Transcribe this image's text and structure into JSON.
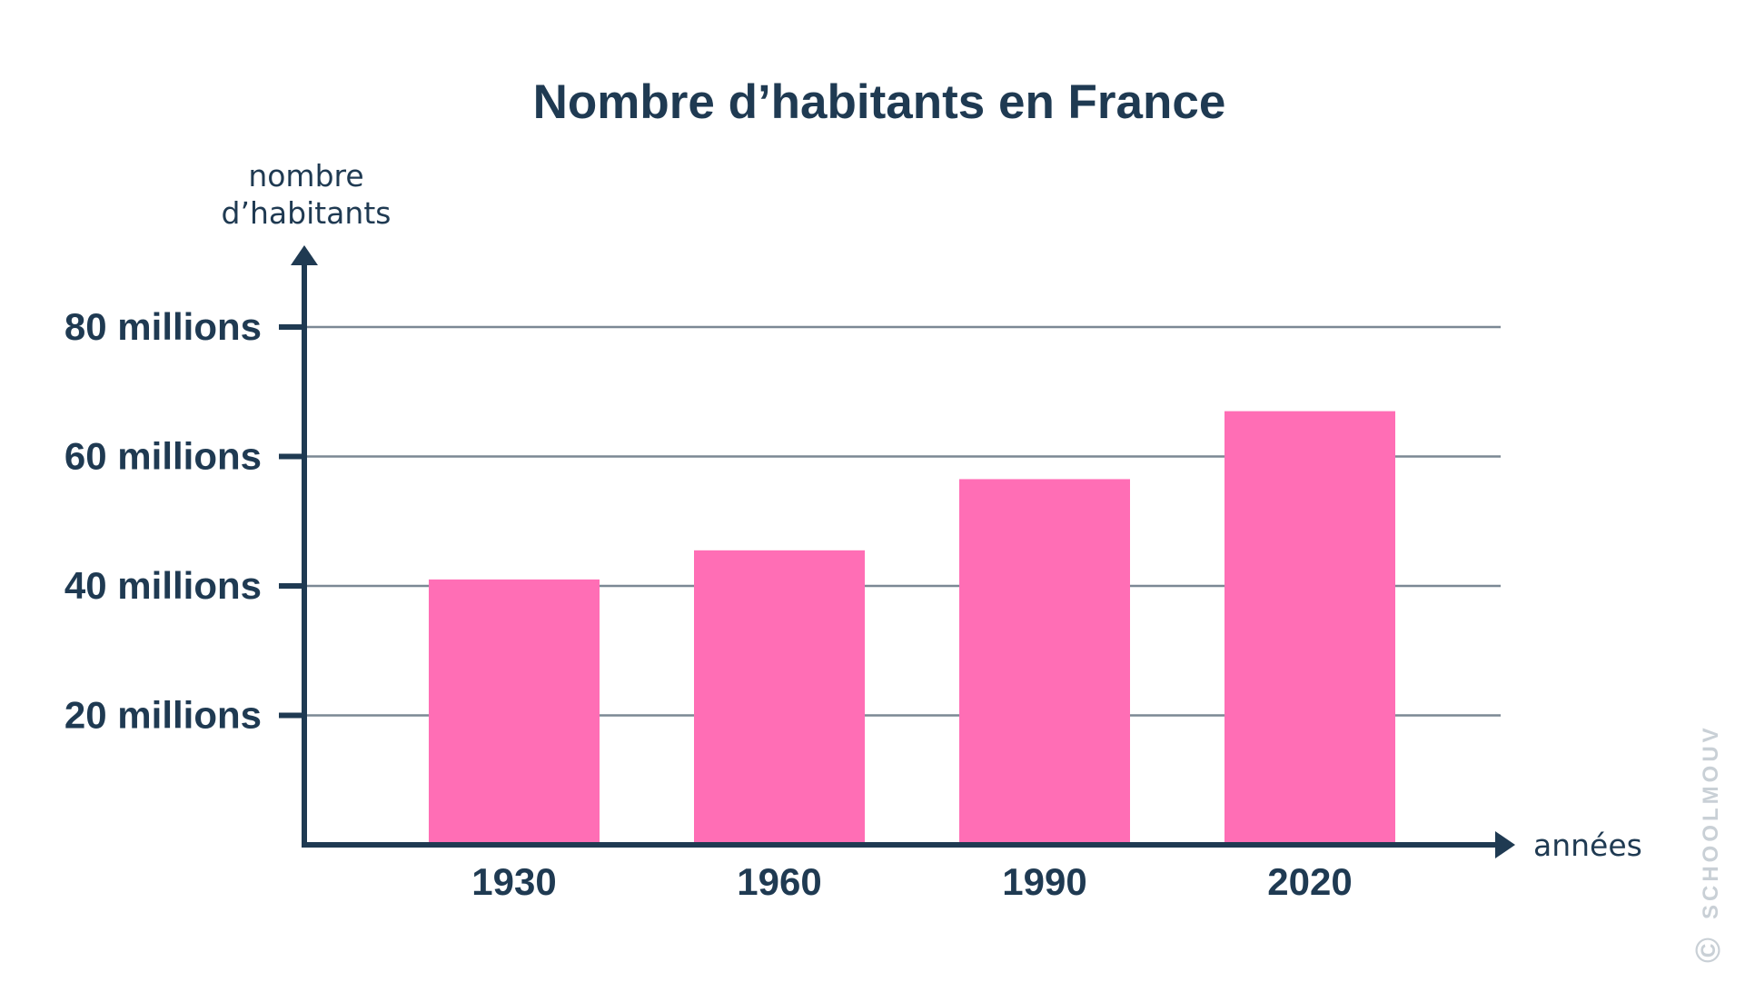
{
  "chart_data": {
    "type": "bar",
    "title": "Nombre d’habitants en France",
    "ylabel_lines": [
      "nombre",
      "d’habitants"
    ],
    "xlabel": "années",
    "categories": [
      "1930",
      "1960",
      "1990",
      "2020"
    ],
    "values": [
      41,
      45.5,
      56.5,
      67
    ],
    "ylim": [
      0,
      80
    ],
    "yticks": [
      20,
      40,
      60,
      80
    ],
    "ytick_labels": [
      "20 millions",
      "40 millions",
      "60 millions",
      "80 millions"
    ],
    "grid": true,
    "legend": "none",
    "colors": {
      "bar": "#ff6eb5",
      "axis": "#1f3a52",
      "grid": "#7b8894"
    }
  },
  "watermark": "SCHOOLMOUV",
  "watermark_symbol": "©"
}
